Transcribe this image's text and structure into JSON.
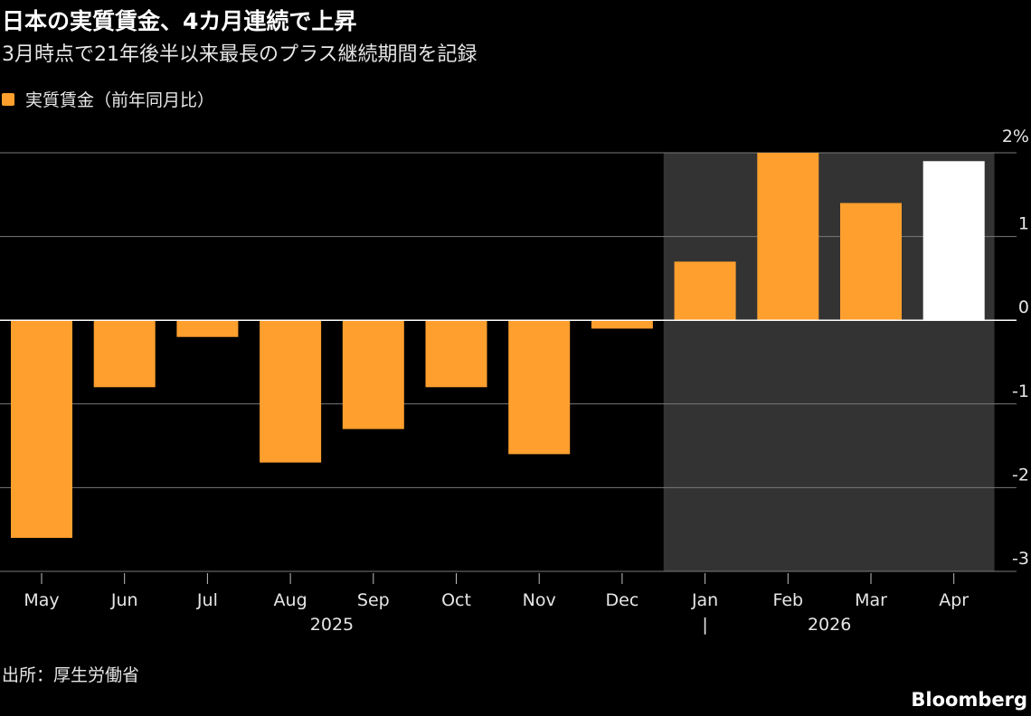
{
  "header": {
    "title": "日本の実質賃金、4カ月連続で上昇",
    "subtitle": "3月時点で21年後半以来最長のプラス継続期間を記録"
  },
  "legend": {
    "label": "実質賃金（前年同月比）"
  },
  "footer": {
    "source": "出所：厚生労働省",
    "brand": "Bloomberg"
  },
  "colors": {
    "bar": "#ff9f2e",
    "highlight": "#ffffff",
    "shade": "#333333",
    "grid": "#7a7a7a",
    "background": "#000000"
  },
  "chart_data": {
    "type": "bar",
    "categories": [
      "May",
      "Jun",
      "Jul",
      "Aug",
      "Sep",
      "Oct",
      "Nov",
      "Dec",
      "Jan",
      "Feb",
      "Mar",
      "Apr"
    ],
    "series": [
      {
        "name": "実質賃金（前年同月比）",
        "values": [
          -2.6,
          -0.8,
          -0.2,
          -1.7,
          -1.3,
          -0.8,
          -1.6,
          -0.1,
          0.7,
          2.0,
          1.4,
          1.9
        ]
      }
    ],
    "highlighted_category": "Apr",
    "shaded_categories": [
      "Jan",
      "Feb",
      "Mar",
      "Apr"
    ],
    "year_labels": [
      {
        "label": "2025",
        "categories": [
          "May",
          "Jun",
          "Jul",
          "Aug",
          "Sep",
          "Oct",
          "Nov",
          "Dec"
        ]
      },
      {
        "label": "2026",
        "categories": [
          "Jan",
          "Feb",
          "Mar",
          "Apr"
        ]
      }
    ],
    "year_separator": "|",
    "ylim": [
      -3,
      2
    ],
    "yticks": [
      2,
      1,
      0,
      -1,
      -2,
      -3
    ],
    "ytick_labels": [
      "2%",
      "1",
      "0",
      "-1",
      "-2",
      "-3"
    ],
    "xlabel": "",
    "ylabel": "",
    "grid": true,
    "legend_position": "top-left"
  }
}
